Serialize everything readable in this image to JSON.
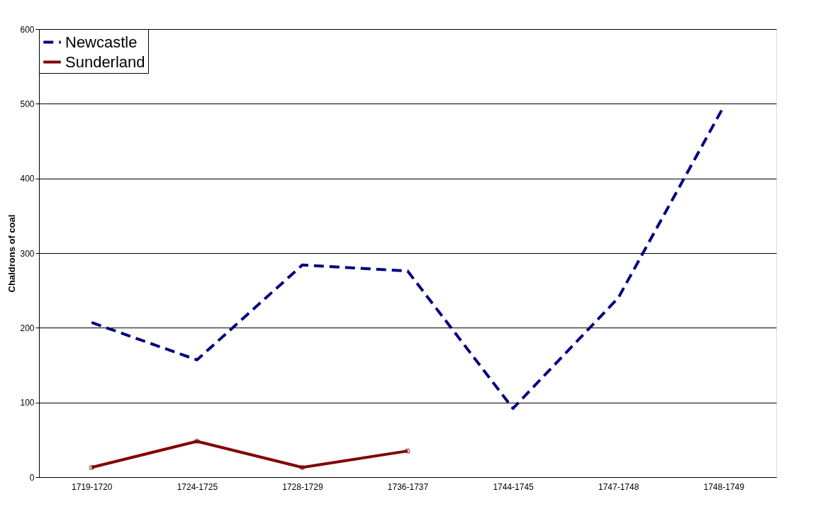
{
  "chart_data": {
    "type": "line",
    "ylabel": "Chaldrons of coal",
    "categories": [
      "1719-1720",
      "1724-1725",
      "1728-1729",
      "1736-1737",
      "1744-1745",
      "1747-1748",
      "1748-1749"
    ],
    "series": [
      {
        "name": "Newcastle",
        "color": "#000080",
        "line_style": "dashed",
        "marker": "none",
        "values": [
          207,
          157,
          284,
          276,
          92,
          240,
          496
        ]
      },
      {
        "name": "Sunderland",
        "color": "#800000",
        "line_style": "solid",
        "marker": "cross",
        "values": [
          13,
          48,
          13,
          35,
          null,
          null,
          null
        ]
      }
    ],
    "ylim": [
      0,
      600
    ],
    "yticks": [
      0,
      100,
      200,
      300,
      400,
      500,
      600
    ],
    "grid": "y",
    "legend": "top left"
  }
}
